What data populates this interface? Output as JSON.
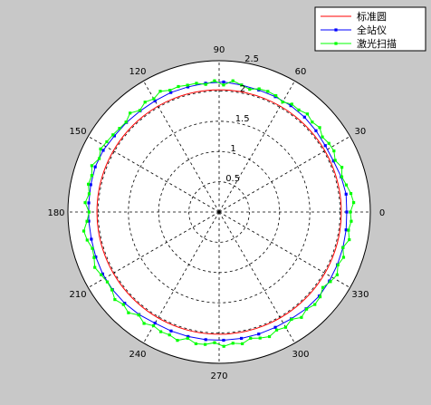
{
  "chart_data": {
    "type": "polar",
    "rlim": [
      0,
      2.5
    ],
    "r_ticks": [
      0.5,
      1,
      1.5,
      2,
      2.5
    ],
    "theta_ticks": [
      0,
      30,
      60,
      90,
      120,
      150,
      180,
      210,
      240,
      270,
      300,
      330
    ],
    "grid": true,
    "legend_position": "top-right",
    "series": [
      {
        "name": "标准圆",
        "color": "#ff0000",
        "markers": false,
        "theta": [
          0,
          360
        ],
        "r": [
          2.02,
          2.02
        ]
      },
      {
        "name": "全站仪",
        "color": "#0000ff",
        "markers": true,
        "theta": [
          0,
          8,
          16,
          24,
          32,
          40,
          48,
          56,
          64,
          72,
          80,
          88,
          96,
          104,
          112,
          120,
          128,
          136,
          144,
          152,
          160,
          168,
          176,
          184,
          192,
          200,
          208,
          216,
          224,
          232,
          240,
          248,
          256,
          264,
          272,
          280,
          288,
          296,
          304,
          312,
          320,
          328,
          336,
          344,
          352
        ],
        "r": [
          2.11,
          2.12,
          2.1,
          2.07,
          2.07,
          2.09,
          2.11,
          2.12,
          2.12,
          2.12,
          2.13,
          2.15,
          2.14,
          2.13,
          2.13,
          2.12,
          2.12,
          2.13,
          2.14,
          2.17,
          2.18,
          2.17,
          2.16,
          2.16,
          2.16,
          2.17,
          2.18,
          2.18,
          2.17,
          2.15,
          2.12,
          2.12,
          2.12,
          2.12,
          2.12,
          2.12,
          2.12,
          2.12,
          2.13,
          2.15,
          2.16,
          2.15,
          2.14,
          2.13,
          2.12
        ]
      },
      {
        "name": "激光扫描",
        "color": "#00ff00",
        "markers": true,
        "theta": [
          0,
          4,
          8,
          12,
          16,
          20,
          24,
          28,
          32,
          36,
          40,
          44,
          48,
          52,
          56,
          60,
          64,
          68,
          72,
          76,
          80,
          84,
          88,
          92,
          96,
          100,
          104,
          108,
          112,
          116,
          120,
          124,
          128,
          132,
          136,
          140,
          144,
          148,
          152,
          156,
          160,
          164,
          168,
          172,
          176,
          180,
          184,
          188,
          192,
          196,
          200,
          204,
          208,
          212,
          216,
          220,
          224,
          228,
          232,
          236,
          240,
          244,
          248,
          252,
          256,
          260,
          264,
          268,
          272,
          276,
          280,
          284,
          288,
          292,
          296,
          300,
          304,
          308,
          312,
          316,
          320,
          324,
          328,
          332,
          336,
          340,
          344,
          348,
          352,
          356
        ],
        "r": [
          2.17,
          2.23,
          2.2,
          2.15,
          2.11,
          2.16,
          2.1,
          2.15,
          2.14,
          2.11,
          2.17,
          2.14,
          2.18,
          2.14,
          2.15,
          2.1,
          2.14,
          2.15,
          2.14,
          2.09,
          2.13,
          2.18,
          2.1,
          2.17,
          2.12,
          2.16,
          2.16,
          2.18,
          2.17,
          2.22,
          2.16,
          2.19,
          2.13,
          2.2,
          2.14,
          2.15,
          2.17,
          2.19,
          2.22,
          2.17,
          2.24,
          2.19,
          2.21,
          2.17,
          2.22,
          2.15,
          2.19,
          2.26,
          2.23,
          2.18,
          2.2,
          2.25,
          2.21,
          2.18,
          2.19,
          2.25,
          2.2,
          2.24,
          2.16,
          2.22,
          2.17,
          2.2,
          2.19,
          2.23,
          2.15,
          2.21,
          2.2,
          2.16,
          2.22,
          2.18,
          2.21,
          2.15,
          2.19,
          2.22,
          2.17,
          2.2,
          2.14,
          2.21,
          2.16,
          2.2,
          2.18,
          2.12,
          2.17,
          2.21,
          2.15,
          2.19,
          2.13,
          2.2,
          2.16,
          2.19
        ]
      }
    ]
  }
}
